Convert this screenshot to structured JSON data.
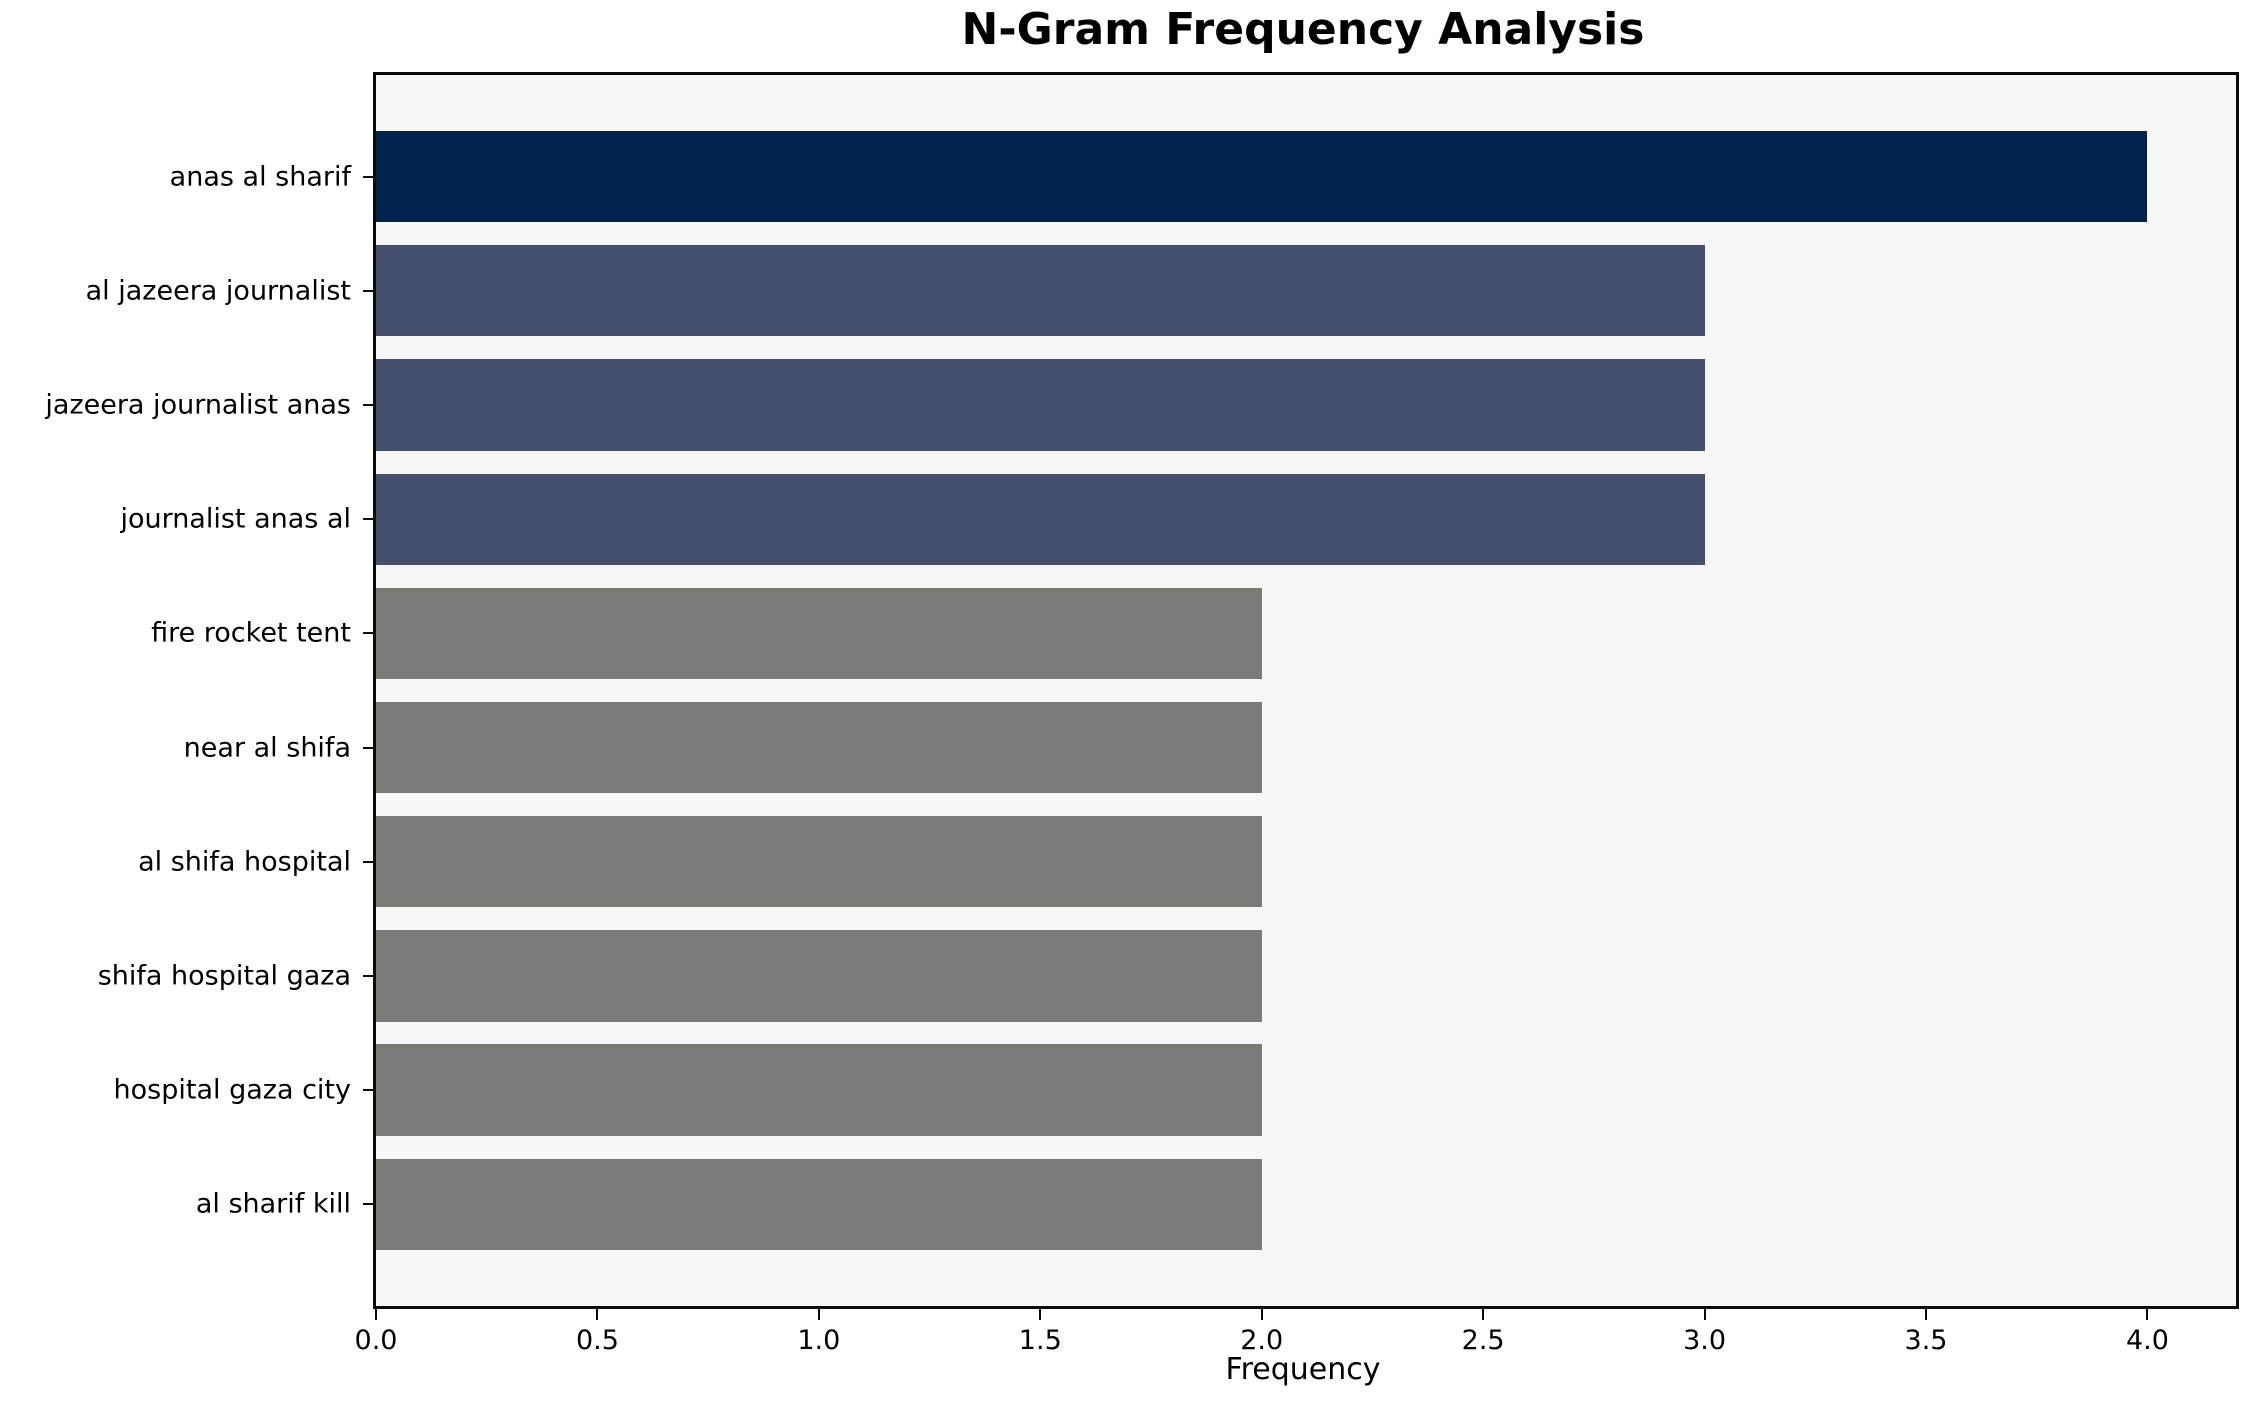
{
  "chart_data": {
    "type": "bar",
    "orientation": "horizontal",
    "title": "N-Gram Frequency Analysis",
    "xlabel": "Frequency",
    "ylabel": "",
    "categories": [
      "anas al sharif",
      "al jazeera journalist",
      "jazeera journalist anas",
      "journalist anas al",
      "fire rocket tent",
      "near al shifa",
      "al shifa hospital",
      "shifa hospital gaza",
      "hospital gaza city",
      "al sharif kill"
    ],
    "values": [
      4,
      3,
      3,
      3,
      2,
      2,
      2,
      2,
      2,
      2
    ],
    "bar_colors": [
      "#02234d",
      "#434f6c",
      "#434f6c",
      "#434f6c",
      "#7b7a77",
      "#7b7a77",
      "#7b7a77",
      "#7b7a77",
      "#7b7a77",
      "#7b7a77"
    ],
    "xlim": [
      0,
      4.2
    ],
    "xticks": [
      0.0,
      0.5,
      1.0,
      1.5,
      2.0,
      2.5,
      3.0,
      3.5,
      4.0
    ],
    "xtick_labels": [
      "0.0",
      "0.5",
      "1.0",
      "1.5",
      "2.0",
      "2.5",
      "3.0",
      "3.5",
      "4.0"
    ],
    "grid": false,
    "legend": null,
    "colors": {
      "plot_background": "#f7f7f8",
      "figure_background": "#ffffff",
      "spine": "#0a0a0a",
      "max_bar": "#02234d",
      "mid_bar": "#434f6c",
      "low_bar": "#7b7a77"
    }
  }
}
